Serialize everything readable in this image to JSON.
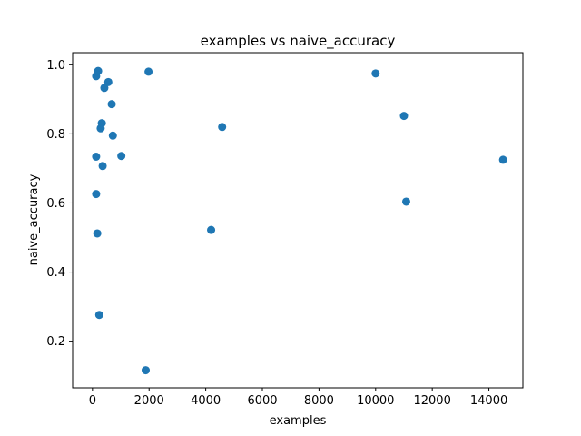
{
  "chart_data": {
    "type": "scatter",
    "title": "examples vs naive_accuracy",
    "xlabel": "examples",
    "ylabel": "naive_accuracy",
    "xlim": [
      -700,
      15200
    ],
    "ylim": [
      0.065,
      1.035
    ],
    "xticks": [
      0,
      2000,
      4000,
      6000,
      8000,
      10000,
      12000,
      14000
    ],
    "xtick_labels": [
      "0",
      "2000",
      "4000",
      "6000",
      "8000",
      "10000",
      "12000",
      "14000"
    ],
    "yticks": [
      0.2,
      0.4,
      0.6,
      0.8,
      1.0
    ],
    "ytick_labels": [
      "0.2",
      "0.4",
      "0.6",
      "0.8",
      "1.0"
    ],
    "grid": false,
    "marker_color": "#1f77b4",
    "points": [
      {
        "x": 130,
        "y": 0.967
      },
      {
        "x": 200,
        "y": 0.982
      },
      {
        "x": 420,
        "y": 0.933
      },
      {
        "x": 560,
        "y": 0.95
      },
      {
        "x": 680,
        "y": 0.886
      },
      {
        "x": 1980,
        "y": 0.98
      },
      {
        "x": 10000,
        "y": 0.975
      },
      {
        "x": 11000,
        "y": 0.852
      },
      {
        "x": 4580,
        "y": 0.82
      },
      {
        "x": 330,
        "y": 0.831
      },
      {
        "x": 290,
        "y": 0.816
      },
      {
        "x": 720,
        "y": 0.795
      },
      {
        "x": 130,
        "y": 0.734
      },
      {
        "x": 1020,
        "y": 0.736
      },
      {
        "x": 360,
        "y": 0.707
      },
      {
        "x": 14500,
        "y": 0.725
      },
      {
        "x": 130,
        "y": 0.626
      },
      {
        "x": 11080,
        "y": 0.604
      },
      {
        "x": 170,
        "y": 0.512
      },
      {
        "x": 4190,
        "y": 0.522
      },
      {
        "x": 240,
        "y": 0.276
      },
      {
        "x": 1880,
        "y": 0.116
      }
    ]
  }
}
